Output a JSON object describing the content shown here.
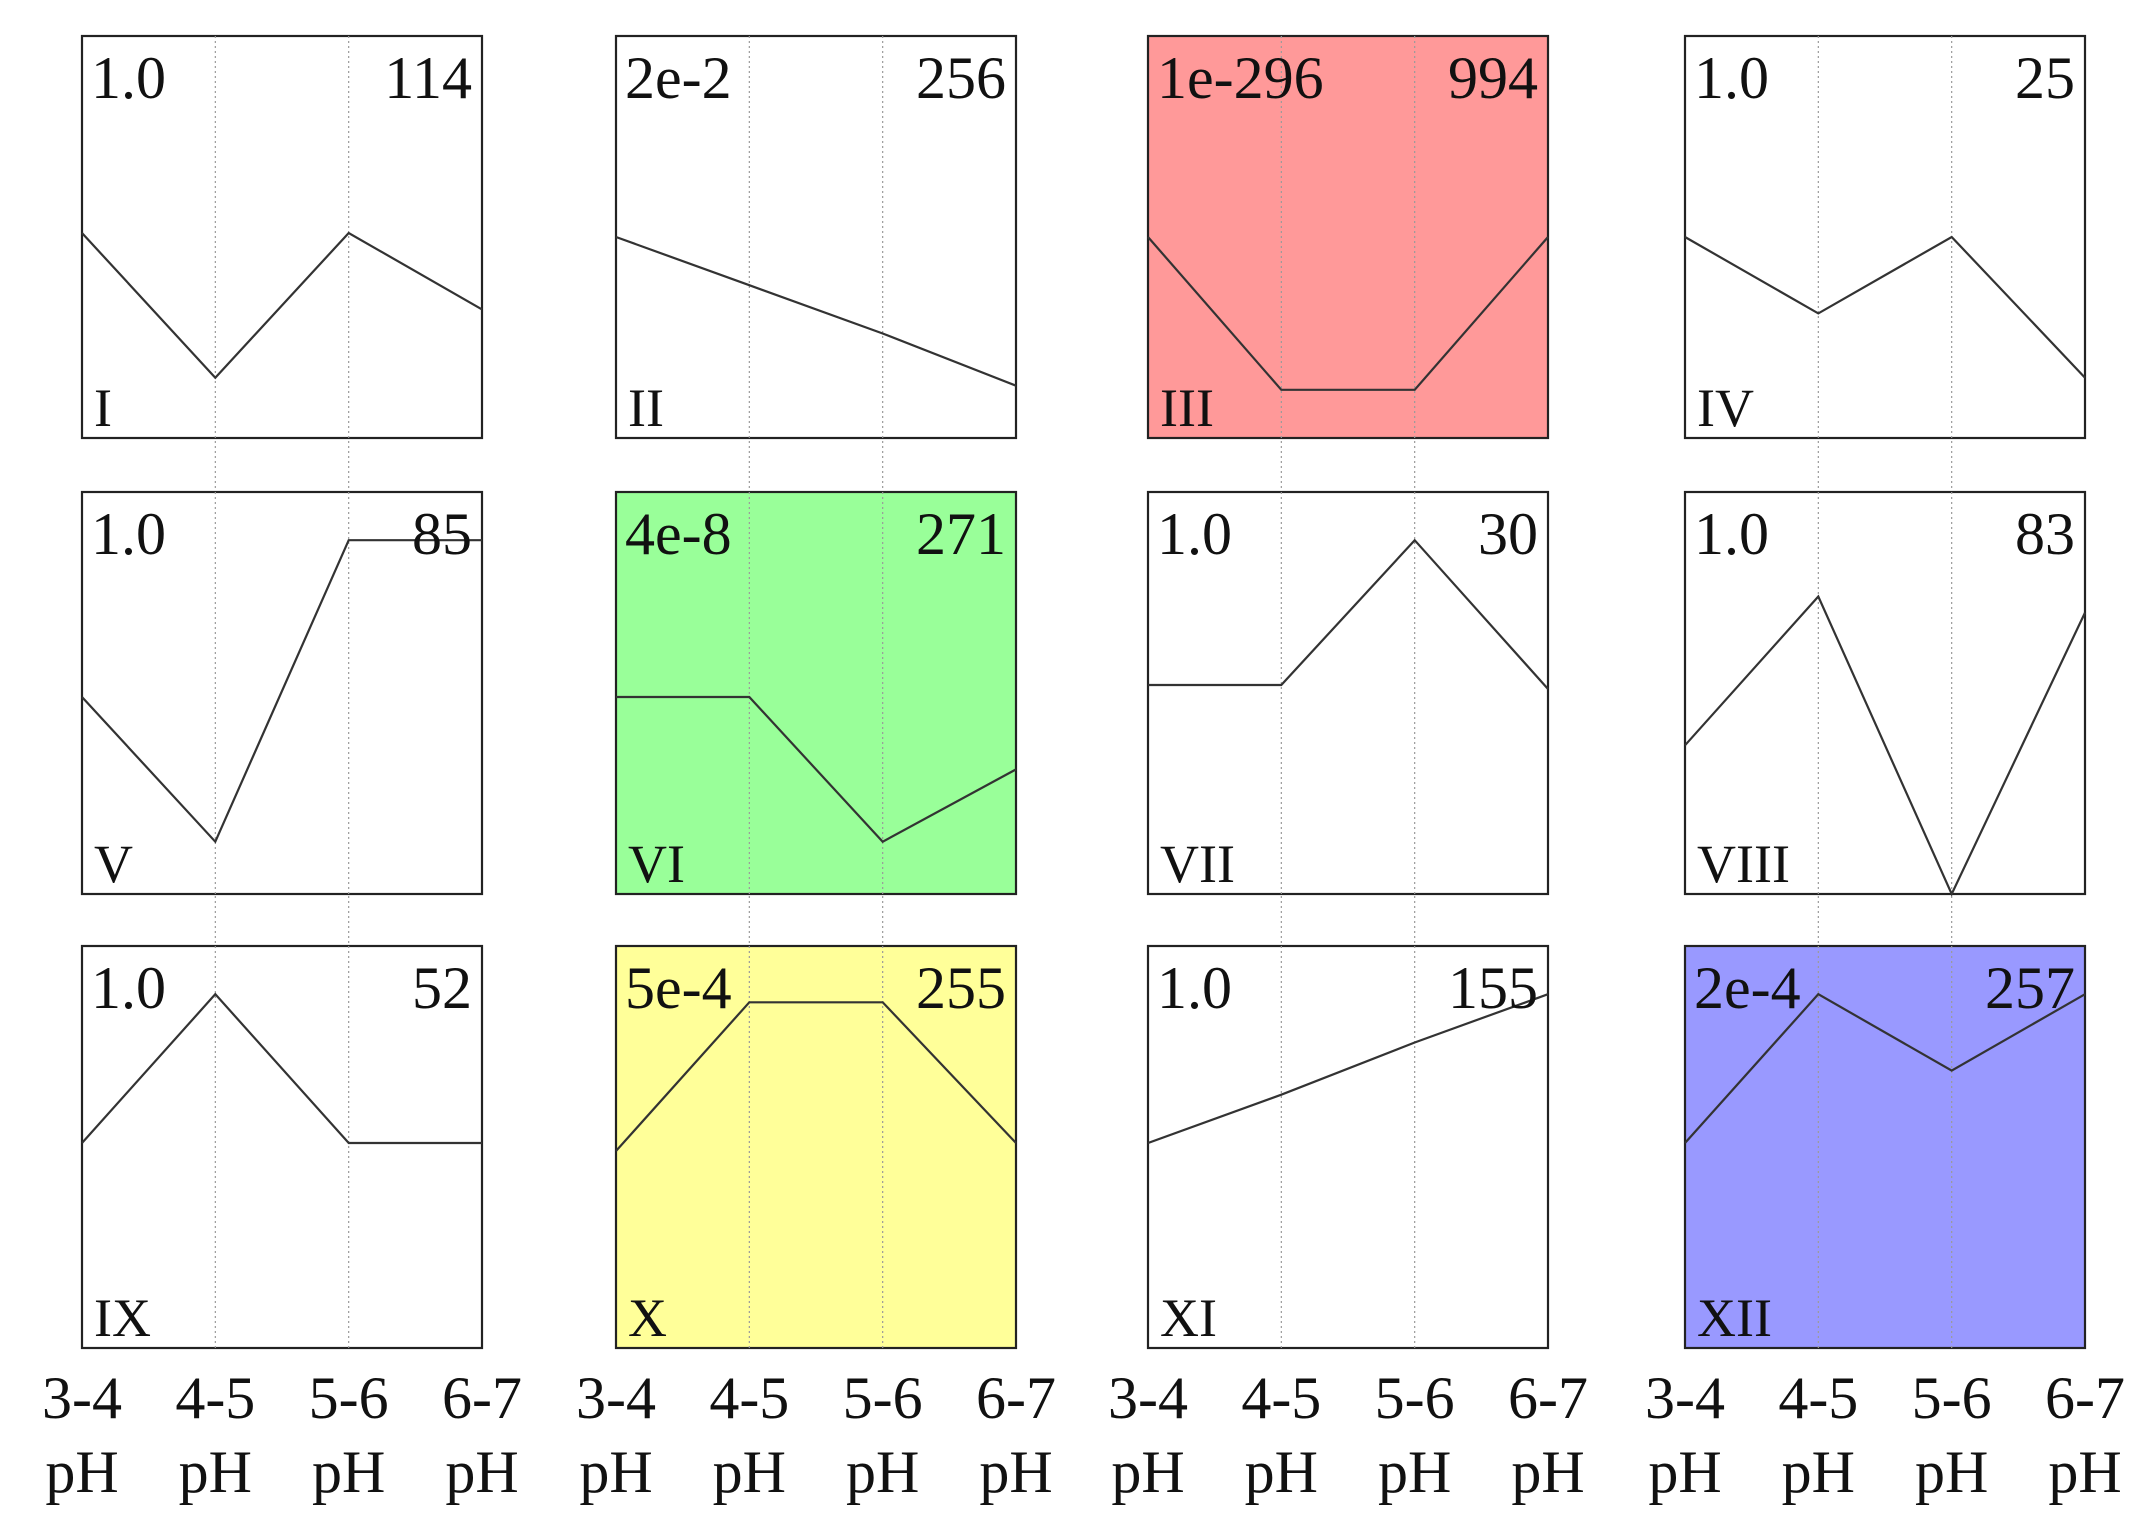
{
  "chart_data": {
    "type": "line",
    "x_categories": [
      "3-4",
      "4-5",
      "5-6",
      "6-7"
    ],
    "x_unit": "pH",
    "grid": true,
    "y_axis_visible": false,
    "panels": [
      {
        "id": "I",
        "pvalue": "1.0",
        "count": "114",
        "values": [
          0.51,
          0.15,
          0.51,
          0.32
        ],
        "highlight": null
      },
      {
        "id": "II",
        "pvalue": "2e-2",
        "count": "256",
        "values": [
          0.5,
          0.38,
          0.26,
          0.13
        ],
        "highlight": null
      },
      {
        "id": "III",
        "pvalue": "1e-296",
        "count": "994",
        "values": [
          0.5,
          0.12,
          0.12,
          0.5
        ],
        "highlight": "#ff9999"
      },
      {
        "id": "IV",
        "pvalue": "1.0",
        "count": "25",
        "values": [
          0.5,
          0.31,
          0.5,
          0.15
        ],
        "highlight": null
      },
      {
        "id": "V",
        "pvalue": "1.0",
        "count": "85",
        "values": [
          0.49,
          0.13,
          0.88,
          0.88
        ],
        "highlight": null
      },
      {
        "id": "VI",
        "pvalue": "4e-8",
        "count": "271",
        "values": [
          0.49,
          0.49,
          0.13,
          0.31
        ],
        "highlight": "#99ff99"
      },
      {
        "id": "VII",
        "pvalue": "1.0",
        "count": "30",
        "values": [
          0.52,
          0.52,
          0.88,
          0.51
        ],
        "highlight": null
      },
      {
        "id": "VIII",
        "pvalue": "1.0",
        "count": "83",
        "values": [
          0.37,
          0.74,
          0.0,
          0.7
        ],
        "highlight": null
      },
      {
        "id": "IX",
        "pvalue": "1.0",
        "count": "52",
        "values": [
          0.51,
          0.88,
          0.51,
          0.51
        ],
        "highlight": null
      },
      {
        "id": "X",
        "pvalue": "5e-4",
        "count": "255",
        "values": [
          0.49,
          0.86,
          0.86,
          0.51
        ],
        "highlight": "#ffff99"
      },
      {
        "id": "XI",
        "pvalue": "1.0",
        "count": "155",
        "values": [
          0.51,
          0.63,
          0.76,
          0.88
        ],
        "highlight": null
      },
      {
        "id": "XII",
        "pvalue": "2e-4",
        "count": "257",
        "values": [
          0.51,
          0.88,
          0.69,
          0.88
        ],
        "highlight": "#9999ff"
      }
    ]
  }
}
